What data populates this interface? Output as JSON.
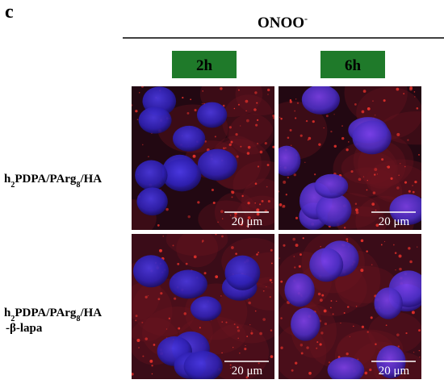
{
  "panel_label": "c",
  "header": {
    "title": {
      "main": "ONOO",
      "superscript": "-"
    },
    "columns": [
      "2h",
      "6h"
    ]
  },
  "rows": [
    {
      "label_lines": [
        [
          "h",
          "2",
          "PDPA/PArg",
          "8",
          "/HA"
        ]
      ]
    },
    {
      "label_lines": [
        [
          "h",
          "2",
          "PDPA/PArg",
          "8",
          "/HA"
        ],
        [
          "-β-lapa"
        ]
      ]
    }
  ],
  "panels": [
    {
      "scale_bar": "20 μm"
    },
    {
      "scale_bar": "20 μm"
    },
    {
      "scale_bar": "20 μm"
    },
    {
      "scale_bar": "20 μm"
    }
  ]
}
